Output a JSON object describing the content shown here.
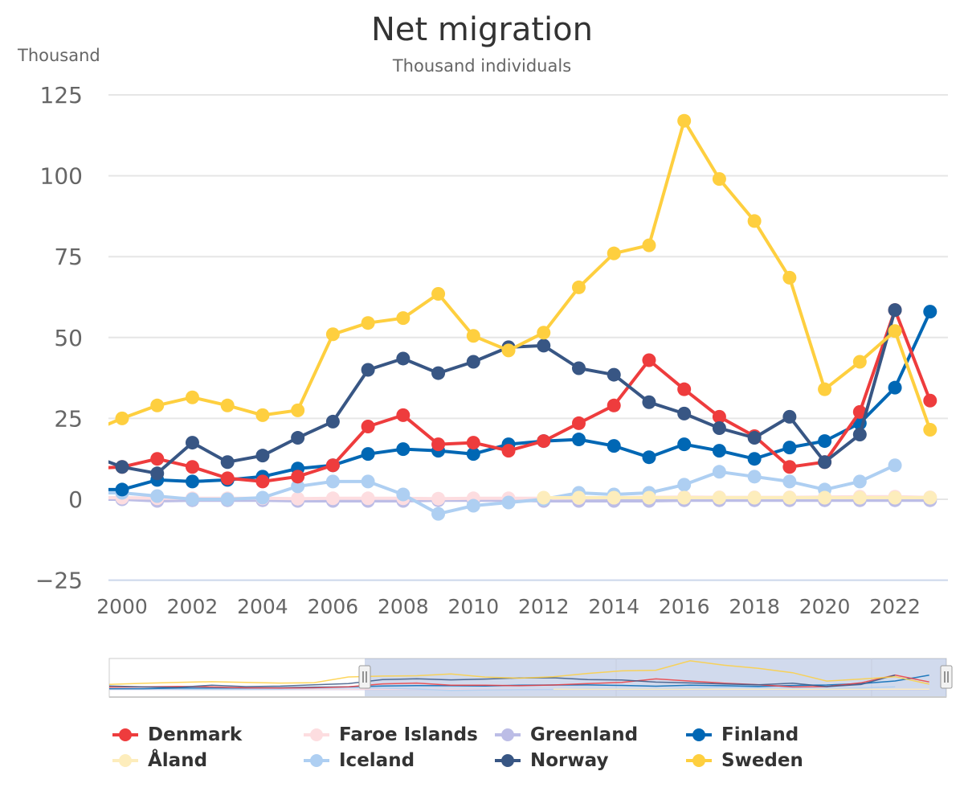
{
  "chart_data": {
    "type": "line",
    "title": "Net migration",
    "subtitle": "Thousand individuals",
    "ylabel": "Thousand",
    "xlabel": "",
    "ylim": [
      -25,
      125
    ],
    "xlim": [
      1999.6,
      2023.5
    ],
    "yticks": [
      -25,
      0,
      25,
      50,
      75,
      100,
      125
    ],
    "ytick_labels": [
      "−25",
      "0",
      "25",
      "50",
      "75",
      "100",
      "125"
    ],
    "xticks": [
      2000,
      2002,
      2004,
      2006,
      2008,
      2010,
      2012,
      2014,
      2016,
      2018,
      2020,
      2022
    ],
    "xtick_labels": [
      "2000",
      "2002",
      "2004",
      "2006",
      "2008",
      "2010",
      "2012",
      "2014",
      "2016",
      "2018",
      "2020",
      "2022"
    ],
    "grid": true,
    "legend_position": "bottom",
    "x": [
      1999,
      2000,
      2001,
      2002,
      2003,
      2004,
      2005,
      2006,
      2007,
      2008,
      2009,
      2010,
      2011,
      2012,
      2013,
      2014,
      2015,
      2016,
      2017,
      2018,
      2019,
      2020,
      2021,
      2022,
      2023
    ],
    "series": [
      {
        "name": "Denmark",
        "color": "#ee3c3d",
        "values": [
          9.5,
          10,
          12.5,
          10,
          6.5,
          5.5,
          7,
          10.5,
          22.5,
          26,
          17,
          17.5,
          15,
          18,
          23.5,
          29,
          43,
          34,
          25.5,
          19.5,
          10,
          11.5,
          27,
          58.5,
          30.5
        ]
      },
      {
        "name": "Faroe Islands",
        "color": "#fddde0",
        "values": [
          0.5,
          0.5,
          0.3,
          0.3,
          0.3,
          0.3,
          0.2,
          0.3,
          0.3,
          0.3,
          0.2,
          0.3,
          0.3,
          0.3,
          0.4,
          0.5,
          0.6,
          0.7,
          0.6,
          0.6,
          0.6,
          0.7,
          0.8,
          0.8,
          0.6
        ]
      },
      {
        "name": "Greenland",
        "color": "#bcbde6",
        "values": [
          0,
          0,
          -0.5,
          -0.3,
          -0.3,
          -0.3,
          -0.5,
          -0.5,
          -0.5,
          -0.5,
          -0.3,
          -0.3,
          -0.3,
          -0.5,
          -0.5,
          -0.5,
          -0.5,
          -0.3,
          -0.3,
          -0.3,
          -0.3,
          -0.3,
          -0.3,
          -0.3,
          -0.3
        ]
      },
      {
        "name": "Finland",
        "color": "#0067b4",
        "values": [
          3,
          3,
          6,
          5.5,
          6,
          7,
          9.5,
          10.5,
          14,
          15.5,
          15,
          14,
          17,
          18,
          18.5,
          16.5,
          13,
          17,
          15,
          12.5,
          16,
          18,
          23.5,
          34.5,
          58
        ]
      },
      {
        "name": "Åland",
        "color": "#fdedbc",
        "values": [
          null,
          null,
          null,
          null,
          null,
          null,
          null,
          null,
          null,
          null,
          null,
          null,
          null,
          0.5,
          0.5,
          0.5,
          0.5,
          0.5,
          0.5,
          0.5,
          0.5,
          0.5,
          0.5,
          0.5,
          0.5
        ]
      },
      {
        "name": "Iceland",
        "color": "#aecff2",
        "values": [
          2,
          2,
          1,
          0,
          0,
          0.5,
          4,
          5.5,
          5.5,
          1.5,
          -4.5,
          -2,
          -1,
          0,
          2,
          1.5,
          2,
          4.5,
          8.5,
          7,
          5.5,
          3,
          5.5,
          10.5,
          null
        ]
      },
      {
        "name": "Norway",
        "color": "#385684",
        "values": [
          14,
          10,
          8,
          17.5,
          11.5,
          13.5,
          19,
          24,
          40,
          43.5,
          39,
          42.5,
          47,
          47.5,
          40.5,
          38.5,
          30,
          26.5,
          22,
          19,
          25.5,
          11.5,
          20,
          58.5,
          null
        ]
      },
      {
        "name": "Sweden",
        "color": "#fecf3f",
        "values": [
          20.5,
          25,
          29,
          31.5,
          29,
          26,
          27.5,
          51,
          54.5,
          56,
          63.5,
          50.5,
          46,
          51.5,
          65.5,
          76,
          78.5,
          117,
          99,
          86,
          68.5,
          34,
          42.5,
          52,
          21.5
        ]
      }
    ]
  },
  "navigator": {
    "range_start_year": 2006,
    "range_end_year": 2023
  },
  "legend": {
    "items": [
      {
        "label": "Denmark",
        "color": "#ee3c3d"
      },
      {
        "label": "Faroe Islands",
        "color": "#fddde0"
      },
      {
        "label": "Greenland",
        "color": "#bcbde6"
      },
      {
        "label": "Finland",
        "color": "#0067b4"
      },
      {
        "label": "Åland",
        "color": "#fdedbc"
      },
      {
        "label": "Iceland",
        "color": "#aecff2"
      },
      {
        "label": "Norway",
        "color": "#385684"
      },
      {
        "label": "Sweden",
        "color": "#fecf3f"
      }
    ]
  }
}
